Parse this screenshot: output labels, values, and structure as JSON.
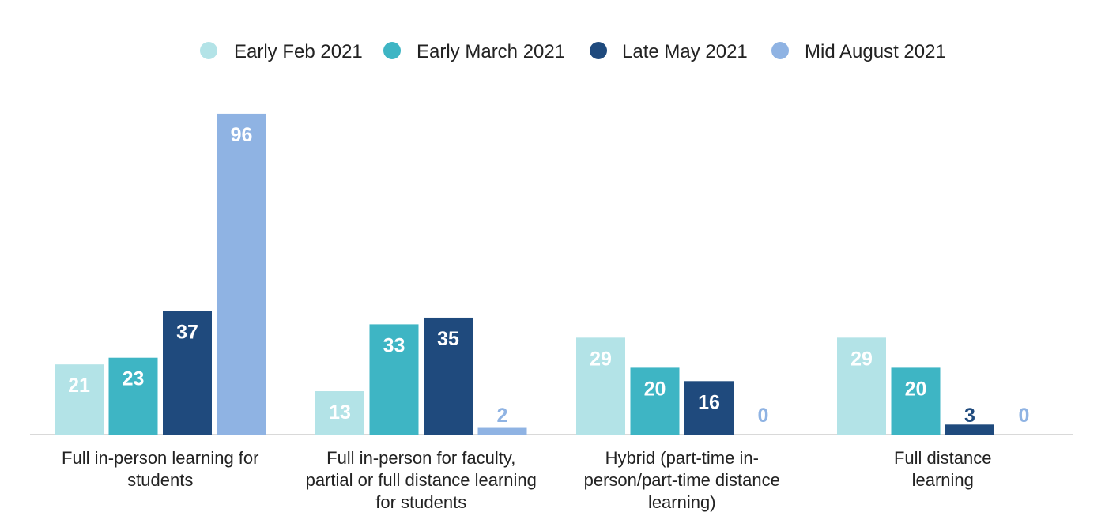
{
  "chart_data": {
    "type": "bar",
    "title": "",
    "xlabel": "",
    "ylabel": "",
    "ylim": [
      0,
      100
    ],
    "grid": false,
    "legend_position": "top-center",
    "categories": [
      [
        "Full in-person learning for",
        "students"
      ],
      [
        "Full in-person for faculty,",
        "partial or full distance learning",
        "for students"
      ],
      [
        "Hybrid (part-time in-",
        "person/part-time distance",
        "learning)"
      ],
      [
        "Full distance",
        "learning"
      ]
    ],
    "series": [
      {
        "name": "Early Feb 2021",
        "color": "#b3e3e7",
        "values": [
          21,
          13,
          29,
          29
        ]
      },
      {
        "name": "Early March 2021",
        "color": "#3eb5c4",
        "values": [
          23,
          33,
          20,
          20
        ]
      },
      {
        "name": "Late May 2021",
        "color": "#1f4a7d",
        "values": [
          37,
          35,
          16,
          3
        ]
      },
      {
        "name": "Mid August 2021",
        "color": "#8fb3e3",
        "values": [
          96,
          2,
          0,
          0
        ]
      }
    ]
  }
}
